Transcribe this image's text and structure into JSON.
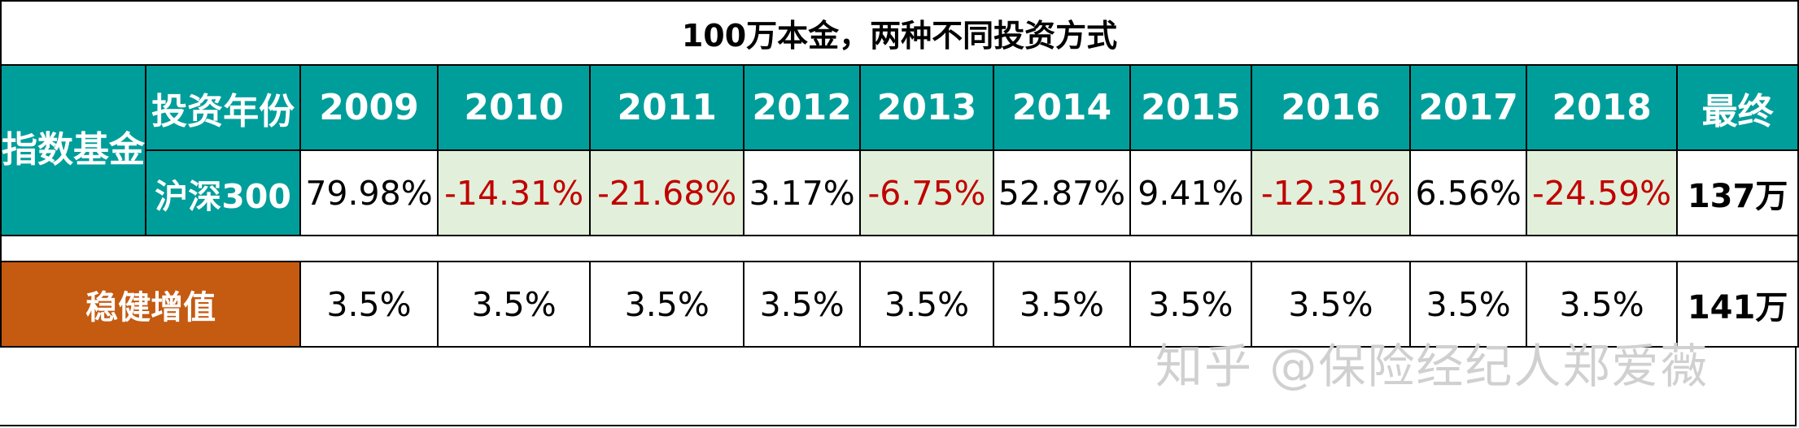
{
  "title": "100万本金，两种不同投资方式",
  "fund_label": "指数基金",
  "header_label": "投资年份",
  "years": [
    "2009",
    "2010",
    "2011",
    "2012",
    "2013",
    "2014",
    "2015",
    "2016",
    "2017",
    "2018"
  ],
  "final_label": "最终",
  "index": {
    "name": "沪深300",
    "returns": [
      "79.98%",
      "-14.31%",
      "-21.68%",
      "3.17%",
      "-6.75%",
      "52.87%",
      "9.41%",
      "-12.31%",
      "6.56%",
      "-24.59%"
    ],
    "final": "137万",
    "colors": {
      "negative_text": "#c00000",
      "negative_fill": "#e2efda"
    }
  },
  "steady": {
    "name": "稳健增值",
    "returns": [
      "3.5%",
      "3.5%",
      "3.5%",
      "3.5%",
      "3.5%",
      "3.5%",
      "3.5%",
      "3.5%",
      "3.5%",
      "3.5%"
    ],
    "final": "141万"
  },
  "watermark": "知乎 @保险经纪人郑爱薇",
  "colors": {
    "teal": "#009e9b",
    "orange": "#c55a11"
  }
}
